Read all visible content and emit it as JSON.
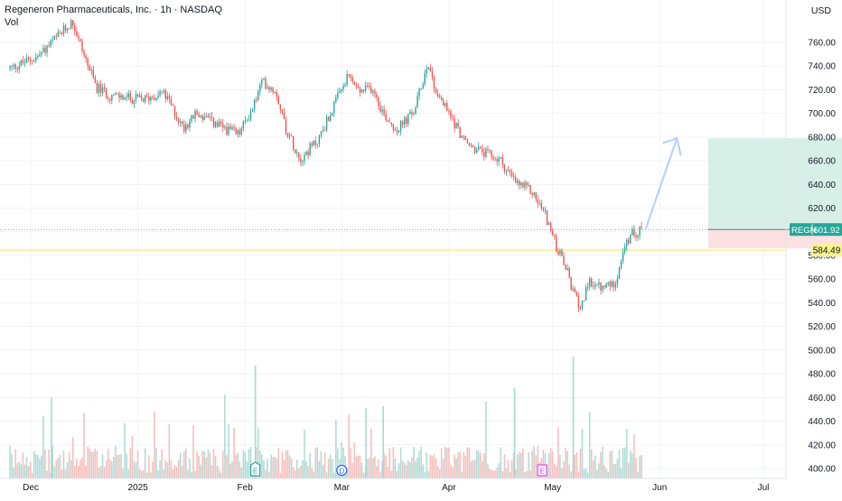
{
  "legend": {
    "title": "Regeneron Pharmaceuticals, Inc. · 1h · NASDAQ",
    "volume_label": "Vol"
  },
  "currency": "USD",
  "colors": {
    "up": "#26a69a",
    "down": "#ef5350",
    "price_line": "#26a69a",
    "horizontal_line": "#f7f48d",
    "target_zone": "#d7efe7",
    "stop_zone": "#fbe1e1",
    "arrow": "#b9d4f0"
  },
  "chart_data": {
    "type": "candlestick",
    "symbol": "REGN",
    "y_axis": {
      "ticks": [
        400,
        420,
        440,
        460,
        480,
        500,
        520,
        540,
        560,
        580,
        600,
        620,
        640,
        660,
        680,
        700,
        720,
        740,
        760
      ],
      "tick_labels": [
        "400.00",
        "420.00",
        "440.00",
        "460.00",
        "480.00",
        "500.00",
        "520.00",
        "540.00",
        "560.00",
        "580.00",
        "600.00",
        "620.00",
        "640.00",
        "660.00",
        "680.00",
        "700.00",
        "720.00",
        "740.00",
        "760.00"
      ]
    },
    "x_axis": {
      "labels": [
        "Dec",
        "2025",
        "Feb",
        "Mar",
        "Apr",
        "May",
        "Jun",
        "Jul"
      ],
      "label_dates": [
        "2024-12-01",
        "2025-01-01",
        "2025-02-01",
        "2025-03-01",
        "2025-04-01",
        "2025-05-01",
        "2025-06-01",
        "2025-07-01"
      ]
    },
    "price_path": [
      [
        "2024-11-25",
        738
      ],
      [
        "2024-12-03",
        748
      ],
      [
        "2024-12-10",
        768
      ],
      [
        "2024-12-13",
        778
      ],
      [
        "2024-12-17",
        745
      ],
      [
        "2024-12-20",
        722
      ],
      [
        "2024-12-24",
        715
      ],
      [
        "2024-12-31",
        712
      ],
      [
        "2025-01-03",
        712
      ],
      [
        "2025-01-08",
        718
      ],
      [
        "2025-01-10",
        710
      ],
      [
        "2025-01-14",
        688
      ],
      [
        "2025-01-18",
        700
      ],
      [
        "2025-01-24",
        690
      ],
      [
        "2025-01-30",
        682
      ],
      [
        "2025-02-03",
        703
      ],
      [
        "2025-02-06",
        727
      ],
      [
        "2025-02-10",
        719
      ],
      [
        "2025-02-13",
        686
      ],
      [
        "2025-02-17",
        662
      ],
      [
        "2025-02-22",
        677
      ],
      [
        "2025-02-27",
        708
      ],
      [
        "2025-03-03",
        732
      ],
      [
        "2025-03-06",
        718
      ],
      [
        "2025-03-10",
        722
      ],
      [
        "2025-03-13",
        700
      ],
      [
        "2025-03-17",
        686
      ],
      [
        "2025-03-22",
        702
      ],
      [
        "2025-03-26",
        744
      ],
      [
        "2025-03-28",
        720
      ],
      [
        "2025-04-02",
        695
      ],
      [
        "2025-04-06",
        674
      ],
      [
        "2025-04-10",
        668
      ],
      [
        "2025-04-16",
        660
      ],
      [
        "2025-04-20",
        642
      ],
      [
        "2025-04-25",
        634
      ],
      [
        "2025-04-29",
        614
      ],
      [
        "2025-05-02",
        588
      ],
      [
        "2025-05-05",
        568
      ],
      [
        "2025-05-07",
        548
      ],
      [
        "2025-05-09",
        537
      ],
      [
        "2025-05-12",
        558
      ],
      [
        "2025-05-15",
        552
      ],
      [
        "2025-05-19",
        557
      ],
      [
        "2025-05-22",
        587
      ],
      [
        "2025-05-24",
        598
      ],
      [
        "2025-05-27",
        602
      ]
    ],
    "volume_axis_max": 80000,
    "last_price": {
      "label": "REGN",
      "value": 601.92,
      "text": "601.92"
    },
    "horizontal_line": {
      "value": 584.49,
      "text": "584.49"
    },
    "position_tool": {
      "entry": 601.92,
      "target": 679,
      "stop": 586,
      "start_date": "2025-06-15",
      "end_date": "2025-07-26"
    },
    "projection_arrow": {
      "from": [
        "2025-05-28",
        603
      ],
      "to": [
        "2025-06-06",
        679
      ]
    },
    "events": [
      {
        "label": "E",
        "date": "2025-02-04",
        "type": "earnings"
      },
      {
        "label": "D",
        "date": "2025-03-01",
        "type": "dividend"
      },
      {
        "label": "E",
        "date": "2025-04-28",
        "type": "earnings_upcoming"
      }
    ]
  }
}
